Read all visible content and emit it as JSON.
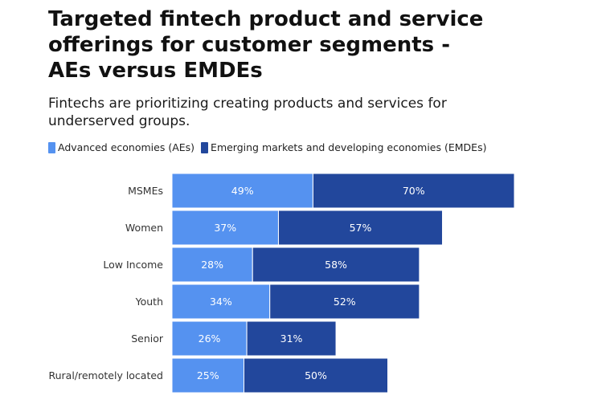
{
  "title": "Targeted fintech product and service offerings for customer segments - AEs versus EMDEs",
  "subtitle": "Fintechs are prioritizing creating products and services for underserved groups.",
  "colors": {
    "aes": "#5592f0",
    "emdes": "#22479c"
  },
  "chart_data": {
    "type": "bar",
    "orientation": "horizontal",
    "stacked": true,
    "title": "Targeted fintech product and service offerings for customer segments - AEs versus EMDEs",
    "subtitle": "Fintechs are prioritizing creating products and services for underserved groups.",
    "categories": [
      "MSMEs",
      "Women",
      "Low Income",
      "Youth",
      "Senior",
      "Rural/remotely located"
    ],
    "series": [
      {
        "name": "Advanced economies (AEs)",
        "values": [
          49,
          37,
          28,
          34,
          26,
          25
        ],
        "labels": [
          "49%",
          "37%",
          "28%",
          "34%",
          "26%",
          "25%"
        ]
      },
      {
        "name": "Emerging markets and developing economies (EMDEs)",
        "values": [
          70,
          57,
          58,
          52,
          31,
          50
        ],
        "labels": [
          "70%",
          "57%",
          "58%",
          "52%",
          "31%",
          "50%"
        ]
      }
    ],
    "xlabel": "",
    "ylabel": "",
    "xlim": [
      0,
      119
    ],
    "grid": false,
    "legend": "top-left"
  }
}
